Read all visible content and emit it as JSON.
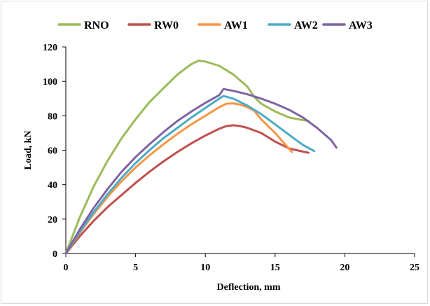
{
  "chart_data": {
    "type": "line",
    "xlabel": "Deflection, mm",
    "ylabel": "Load, kN",
    "xlim": [
      0,
      25
    ],
    "ylim": [
      0,
      120
    ],
    "x_ticks": [
      "0",
      "5",
      "10",
      "15",
      "20",
      "25"
    ],
    "y_ticks": [
      "0",
      "20",
      "40",
      "60",
      "80",
      "100",
      "120"
    ],
    "grid": false,
    "legend_position": "top",
    "series": [
      {
        "name": "RNO",
        "color": "#9bbb59",
        "x": [
          0,
          1,
          2,
          3,
          4,
          5,
          6,
          7,
          8,
          9,
          9.5,
          10,
          11,
          12,
          13,
          13.5,
          14,
          15,
          16,
          17,
          17.4
        ],
        "y": [
          0,
          21,
          39,
          54,
          67,
          78,
          88,
          96,
          104,
          110,
          112,
          111.5,
          109,
          104,
          97,
          91,
          87,
          82.5,
          79,
          77.5,
          77
        ]
      },
      {
        "name": "RW0",
        "color": "#c0504d",
        "x": [
          0,
          1,
          2,
          3,
          4,
          5,
          6,
          7,
          8,
          9,
          10,
          11,
          11.5,
          12,
          12.5,
          13,
          14,
          15,
          16,
          17,
          17.4
        ],
        "y": [
          0,
          10,
          19,
          27,
          34,
          41,
          47.5,
          53.5,
          59,
          64,
          68.5,
          72.5,
          74,
          74.5,
          74,
          73,
          70,
          65,
          61,
          59.2,
          58.5
        ]
      },
      {
        "name": "AW1",
        "color": "#f79646",
        "x": [
          0,
          1,
          2,
          3,
          4,
          5,
          6,
          7,
          8,
          9,
          10,
          11,
          11.5,
          12,
          12.5,
          13,
          13.5,
          14,
          15,
          16.2
        ],
        "y": [
          0,
          12,
          23,
          33,
          42,
          50,
          57,
          63.5,
          69.5,
          75,
          80,
          85,
          87,
          87.2,
          86.5,
          85,
          83,
          78,
          70,
          59
        ]
      },
      {
        "name": "AW2",
        "color": "#4bacc6",
        "x": [
          0,
          1,
          2,
          3,
          4,
          5,
          6,
          7,
          8,
          9,
          10,
          11,
          11.3,
          12,
          13,
          14,
          15,
          16,
          17,
          17.8
        ],
        "y": [
          0,
          12.5,
          24,
          34.5,
          44,
          52.5,
          60,
          67,
          73,
          79,
          84.5,
          90,
          91.5,
          90,
          86,
          81,
          75,
          69,
          63,
          59.5
        ]
      },
      {
        "name": "AW3",
        "color": "#8064a2",
        "x": [
          0,
          1,
          2,
          3,
          4,
          5,
          6,
          7,
          8,
          9,
          10,
          11,
          11.3,
          12,
          13,
          14,
          15,
          16,
          17,
          18,
          19,
          19.4
        ],
        "y": [
          0,
          14,
          26.5,
          37.5,
          47.5,
          56,
          63.5,
          70.5,
          77,
          82.5,
          87.5,
          92,
          95.5,
          94.5,
          92.5,
          90,
          87,
          83.5,
          79,
          73,
          66,
          61.5
        ]
      }
    ]
  }
}
